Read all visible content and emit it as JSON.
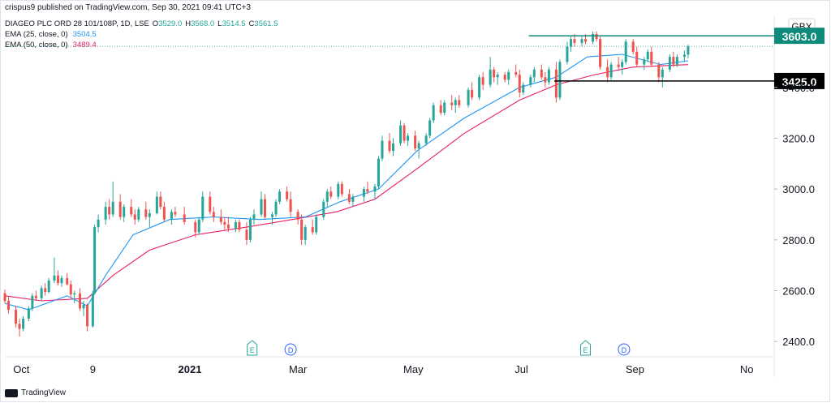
{
  "header": {
    "published": "crispus9 published on TradingView.com, Sep 30, 2021 09:41 UTC+3"
  },
  "legend": {
    "symbol": "DIAGEO PLC ORD 28 101/108P, 1D, LSE",
    "ohlc": {
      "o_label": "O",
      "o": "3529.0",
      "h_label": "H",
      "h": "3568.0",
      "l_label": "L",
      "l": "3514.5",
      "c_label": "C",
      "c": "3561.5"
    },
    "ema25_label": "EMA (25, close, 0)",
    "ema25_value": "3504.5",
    "ema50_label": "EMA (50, close, 0)",
    "ema50_value": "3489.4"
  },
  "footer": {
    "brand": "TradingView"
  },
  "colors": {
    "up": "#26a69a",
    "down": "#ef5350",
    "ema25": "#2196f3",
    "ema50": "#e91e63",
    "resistance": "#0e8a7a",
    "support": "#000000",
    "axis_text": "#131722"
  },
  "chart_data": {
    "type": "candlestick",
    "currency": "GBX",
    "ylim": [
      2340,
      3680
    ],
    "y_ticks": [
      "2400.0",
      "2600.0",
      "2800.0",
      "3000.0",
      "3200.0",
      "3400.0"
    ],
    "x_ticks": [
      {
        "label": "Oct",
        "date": "2020-10-01"
      },
      {
        "label": "9",
        "date": "2020-11-09"
      },
      {
        "label": "2021",
        "date": "2021-01-01"
      },
      {
        "label": "Mar",
        "date": "2021-03-01"
      },
      {
        "label": "May",
        "date": "2021-05-03"
      },
      {
        "label": "Jul",
        "date": "2021-07-01"
      },
      {
        "label": "Sep",
        "date": "2021-09-01"
      },
      {
        "label": "No",
        "date": "2021-11-01"
      }
    ],
    "x_range": [
      "2020-09-22",
      "2021-11-16"
    ],
    "last_price_dotted": 3561.5,
    "levels": [
      {
        "name": "resistance",
        "value": 3603.0,
        "label": "3603.0",
        "start": "2021-07-05",
        "color": "#0e8a7a"
      },
      {
        "name": "support",
        "value": 3425.0,
        "label": "3425.0",
        "start": "2021-07-19",
        "color": "#000000"
      }
    ],
    "events": [
      {
        "letter": "E",
        "date": "2021-02-04"
      },
      {
        "letter": "D",
        "date": "2021-02-25"
      },
      {
        "letter": "E",
        "date": "2021-08-05"
      },
      {
        "letter": "D",
        "date": "2021-08-26"
      }
    ],
    "candles": [
      [
        "2020-09-22",
        2590,
        2605,
        2550,
        2560
      ],
      [
        "2020-09-24",
        2560,
        2575,
        2510,
        2525
      ],
      [
        "2020-09-28",
        2525,
        2540,
        2455,
        2470
      ],
      [
        "2020-09-30",
        2470,
        2490,
        2420,
        2450
      ],
      [
        "2020-10-02",
        2450,
        2500,
        2440,
        2490
      ],
      [
        "2020-10-05",
        2490,
        2540,
        2480,
        2530
      ],
      [
        "2020-10-07",
        2530,
        2590,
        2520,
        2580
      ],
      [
        "2020-10-09",
        2580,
        2600,
        2560,
        2570
      ],
      [
        "2020-10-12",
        2570,
        2620,
        2560,
        2610
      ],
      [
        "2020-10-14",
        2610,
        2630,
        2580,
        2595
      ],
      [
        "2020-10-16",
        2595,
        2650,
        2590,
        2640
      ],
      [
        "2020-10-19",
        2640,
        2730,
        2630,
        2660
      ],
      [
        "2020-10-21",
        2660,
        2680,
        2620,
        2630
      ],
      [
        "2020-10-23",
        2630,
        2660,
        2615,
        2650
      ],
      [
        "2020-10-26",
        2650,
        2670,
        2620,
        2625
      ],
      [
        "2020-10-28",
        2625,
        2640,
        2570,
        2585
      ],
      [
        "2020-10-30",
        2585,
        2600,
        2550,
        2590
      ],
      [
        "2020-11-02",
        2590,
        2610,
        2520,
        2530
      ],
      [
        "2020-11-04",
        2530,
        2560,
        2500,
        2545
      ],
      [
        "2020-11-06",
        2545,
        2550,
        2440,
        2460
      ],
      [
        "2020-11-09",
        2460,
        2600,
        2455,
        2590
      ],
      [
        "2020-11-10",
        2590,
        2860,
        2585,
        2850
      ],
      [
        "2020-11-12",
        2850,
        2900,
        2830,
        2880
      ],
      [
        "2020-11-16",
        2880,
        2950,
        2860,
        2930
      ],
      [
        "2020-11-18",
        2930,
        2960,
        2880,
        2900
      ],
      [
        "2020-11-20",
        2900,
        3030,
        2890,
        2950
      ],
      [
        "2020-11-24",
        2950,
        2980,
        2880,
        2890
      ],
      [
        "2020-11-26",
        2890,
        2940,
        2870,
        2930
      ],
      [
        "2020-11-30",
        2930,
        2960,
        2890,
        2900
      ],
      [
        "2020-12-02",
        2900,
        2920,
        2860,
        2880
      ],
      [
        "2020-12-04",
        2880,
        2930,
        2870,
        2920
      ],
      [
        "2020-12-08",
        2920,
        2950,
        2880,
        2890
      ],
      [
        "2020-12-10",
        2890,
        2920,
        2850,
        2905
      ],
      [
        "2020-12-14",
        2905,
        2990,
        2900,
        2970
      ],
      [
        "2020-12-16",
        2970,
        2990,
        2920,
        2930
      ],
      [
        "2020-12-18",
        2930,
        2950,
        2870,
        2880
      ],
      [
        "2020-12-22",
        2880,
        2920,
        2860,
        2910
      ],
      [
        "2020-12-24",
        2910,
        2930,
        2890,
        2900
      ],
      [
        "2020-12-29",
        2900,
        2930,
        2860,
        2870
      ],
      [
        "2021-01-04",
        2870,
        2880,
        2810,
        2830
      ],
      [
        "2021-01-06",
        2830,
        2890,
        2820,
        2880
      ],
      [
        "2021-01-08",
        2880,
        2990,
        2870,
        2970
      ],
      [
        "2021-01-12",
        2970,
        2990,
        2900,
        2910
      ],
      [
        "2021-01-14",
        2910,
        2930,
        2870,
        2890
      ],
      [
        "2021-01-18",
        2890,
        2920,
        2860,
        2870
      ],
      [
        "2021-01-20",
        2870,
        2890,
        2840,
        2860
      ],
      [
        "2021-01-22",
        2860,
        2890,
        2830,
        2845
      ],
      [
        "2021-01-26",
        2845,
        2880,
        2830,
        2870
      ],
      [
        "2021-01-28",
        2870,
        2880,
        2830,
        2840
      ],
      [
        "2021-02-01",
        2840,
        2870,
        2780,
        2800
      ],
      [
        "2021-02-03",
        2800,
        2890,
        2790,
        2880
      ],
      [
        "2021-02-05",
        2880,
        2920,
        2860,
        2900
      ],
      [
        "2021-02-09",
        2900,
        2990,
        2890,
        2960
      ],
      [
        "2021-02-11",
        2960,
        2980,
        2880,
        2890
      ],
      [
        "2021-02-15",
        2890,
        2910,
        2860,
        2900
      ],
      [
        "2021-02-17",
        2900,
        2960,
        2890,
        2950
      ],
      [
        "2021-02-19",
        2950,
        3000,
        2940,
        2990
      ],
      [
        "2021-02-23",
        2990,
        3010,
        2950,
        2960
      ],
      [
        "2021-02-25",
        2960,
        2990,
        2890,
        2910
      ],
      [
        "2021-03-01",
        2910,
        2920,
        2860,
        2880
      ],
      [
        "2021-03-03",
        2880,
        2900,
        2780,
        2800
      ],
      [
        "2021-03-05",
        2800,
        2860,
        2780,
        2850
      ],
      [
        "2021-03-09",
        2850,
        2880,
        2820,
        2830
      ],
      [
        "2021-03-11",
        2830,
        2900,
        2820,
        2890
      ],
      [
        "2021-03-15",
        2890,
        2960,
        2880,
        2950
      ],
      [
        "2021-03-17",
        2950,
        3000,
        2930,
        2990
      ],
      [
        "2021-03-19",
        2990,
        3010,
        2960,
        2970
      ],
      [
        "2021-03-23",
        2970,
        3030,
        2960,
        3020
      ],
      [
        "2021-03-25",
        3020,
        3030,
        2970,
        2980
      ],
      [
        "2021-03-29",
        2980,
        3000,
        2940,
        2950
      ],
      [
        "2021-03-31",
        2950,
        2980,
        2930,
        2970
      ],
      [
        "2021-04-06",
        2970,
        3010,
        2950,
        3000
      ],
      [
        "2021-04-08",
        3000,
        3030,
        2980,
        2990
      ],
      [
        "2021-04-12",
        2990,
        3020,
        2960,
        3010
      ],
      [
        "2021-04-14",
        3010,
        3130,
        3000,
        3120
      ],
      [
        "2021-04-16",
        3120,
        3210,
        3110,
        3190
      ],
      [
        "2021-04-20",
        3190,
        3220,
        3140,
        3150
      ],
      [
        "2021-04-22",
        3150,
        3200,
        3130,
        3180
      ],
      [
        "2021-04-26",
        3180,
        3270,
        3170,
        3250
      ],
      [
        "2021-04-28",
        3250,
        3260,
        3180,
        3190
      ],
      [
        "2021-04-30",
        3190,
        3220,
        3170,
        3210
      ],
      [
        "2021-05-04",
        3210,
        3230,
        3150,
        3160
      ],
      [
        "2021-05-06",
        3160,
        3190,
        3120,
        3180
      ],
      [
        "2021-05-10",
        3180,
        3220,
        3170,
        3210
      ],
      [
        "2021-05-12",
        3210,
        3280,
        3200,
        3270
      ],
      [
        "2021-05-14",
        3270,
        3340,
        3260,
        3330
      ],
      [
        "2021-05-18",
        3330,
        3350,
        3290,
        3300
      ],
      [
        "2021-05-20",
        3300,
        3350,
        3290,
        3340
      ],
      [
        "2021-05-24",
        3340,
        3370,
        3310,
        3330
      ],
      [
        "2021-05-26",
        3330,
        3360,
        3300,
        3350
      ],
      [
        "2021-05-28",
        3350,
        3370,
        3320,
        3330
      ],
      [
        "2021-06-02",
        3330,
        3400,
        3320,
        3390
      ],
      [
        "2021-06-04",
        3390,
        3420,
        3350,
        3360
      ],
      [
        "2021-06-08",
        3360,
        3450,
        3350,
        3440
      ],
      [
        "2021-06-10",
        3440,
        3460,
        3390,
        3410
      ],
      [
        "2021-06-14",
        3410,
        3520,
        3400,
        3470
      ],
      [
        "2021-06-16",
        3470,
        3480,
        3420,
        3440
      ],
      [
        "2021-06-18",
        3440,
        3460,
        3410,
        3450
      ],
      [
        "2021-06-22",
        3450,
        3460,
        3420,
        3430
      ],
      [
        "2021-06-24",
        3430,
        3470,
        3410,
        3460
      ],
      [
        "2021-06-28",
        3460,
        3490,
        3440,
        3450
      ],
      [
        "2021-06-30",
        3450,
        3470,
        3360,
        3380
      ],
      [
        "2021-07-02",
        3380,
        3420,
        3370,
        3410
      ],
      [
        "2021-07-06",
        3410,
        3450,
        3400,
        3440
      ],
      [
        "2021-07-08",
        3440,
        3480,
        3420,
        3470
      ],
      [
        "2021-07-12",
        3470,
        3490,
        3430,
        3440
      ],
      [
        "2021-07-14",
        3440,
        3460,
        3400,
        3420
      ],
      [
        "2021-07-16",
        3420,
        3480,
        3410,
        3470
      ],
      [
        "2021-07-20",
        3470,
        3500,
        3340,
        3360
      ],
      [
        "2021-07-22",
        3360,
        3510,
        3350,
        3500
      ],
      [
        "2021-07-26",
        3500,
        3580,
        3490,
        3560
      ],
      [
        "2021-07-28",
        3560,
        3600,
        3540,
        3590
      ],
      [
        "2021-07-30",
        3590,
        3610,
        3560,
        3575
      ],
      [
        "2021-08-03",
        3575,
        3600,
        3560,
        3590
      ],
      [
        "2021-08-05",
        3590,
        3610,
        3570,
        3580
      ],
      [
        "2021-08-09",
        3580,
        3620,
        3570,
        3610
      ],
      [
        "2021-08-11",
        3610,
        3620,
        3580,
        3590
      ],
      [
        "2021-08-13",
        3590,
        3600,
        3470,
        3480
      ],
      [
        "2021-08-17",
        3480,
        3510,
        3420,
        3440
      ],
      [
        "2021-08-19",
        3440,
        3500,
        3430,
        3490
      ],
      [
        "2021-08-23",
        3490,
        3520,
        3470,
        3480
      ],
      [
        "2021-08-25",
        3480,
        3510,
        3450,
        3500
      ],
      [
        "2021-08-27",
        3500,
        3590,
        3490,
        3580
      ],
      [
        "2021-08-31",
        3580,
        3590,
        3530,
        3540
      ],
      [
        "2021-09-02",
        3540,
        3560,
        3480,
        3490
      ],
      [
        "2021-09-06",
        3490,
        3520,
        3470,
        3510
      ],
      [
        "2021-09-08",
        3510,
        3550,
        3500,
        3540
      ],
      [
        "2021-09-10",
        3540,
        3560,
        3480,
        3490
      ],
      [
        "2021-09-14",
        3490,
        3500,
        3420,
        3440
      ],
      [
        "2021-09-16",
        3440,
        3480,
        3400,
        3470
      ],
      [
        "2021-09-20",
        3470,
        3530,
        3460,
        3520
      ],
      [
        "2021-09-22",
        3520,
        3540,
        3480,
        3490
      ],
      [
        "2021-09-24",
        3490,
        3530,
        3480,
        3520
      ],
      [
        "2021-09-28",
        3520,
        3545,
        3500,
        3529
      ],
      [
        "2021-09-30",
        3529,
        3568,
        3514.5,
        3561.5
      ]
    ],
    "ema25": [
      [
        "2020-09-22",
        2550
      ],
      [
        "2020-10-05",
        2525
      ],
      [
        "2020-10-26",
        2580
      ],
      [
        "2020-11-06",
        2540
      ],
      [
        "2020-11-16",
        2660
      ],
      [
        "2020-12-01",
        2820
      ],
      [
        "2020-12-21",
        2880
      ],
      [
        "2021-01-14",
        2890
      ],
      [
        "2021-02-08",
        2880
      ],
      [
        "2021-03-05",
        2890
      ],
      [
        "2021-03-24",
        2950
      ],
      [
        "2021-04-14",
        3000
      ],
      [
        "2021-05-05",
        3150
      ],
      [
        "2021-05-31",
        3280
      ],
      [
        "2021-06-30",
        3400
      ],
      [
        "2021-07-20",
        3440
      ],
      [
        "2021-08-06",
        3520
      ],
      [
        "2021-08-25",
        3530
      ],
      [
        "2021-09-15",
        3490
      ],
      [
        "2021-09-30",
        3504.5
      ]
    ],
    "ema50": [
      [
        "2020-09-22",
        2580
      ],
      [
        "2020-10-12",
        2560
      ],
      [
        "2020-11-06",
        2570
      ],
      [
        "2020-11-20",
        2660
      ],
      [
        "2020-12-10",
        2760
      ],
      [
        "2021-01-04",
        2820
      ],
      [
        "2021-02-01",
        2850
      ],
      [
        "2021-02-26",
        2880
      ],
      [
        "2021-03-22",
        2910
      ],
      [
        "2021-04-12",
        2960
      ],
      [
        "2021-05-05",
        3080
      ],
      [
        "2021-05-31",
        3220
      ],
      [
        "2021-06-30",
        3350
      ],
      [
        "2021-07-20",
        3410
      ],
      [
        "2021-08-10",
        3450
      ],
      [
        "2021-08-31",
        3480
      ],
      [
        "2021-09-30",
        3489.4
      ]
    ]
  }
}
